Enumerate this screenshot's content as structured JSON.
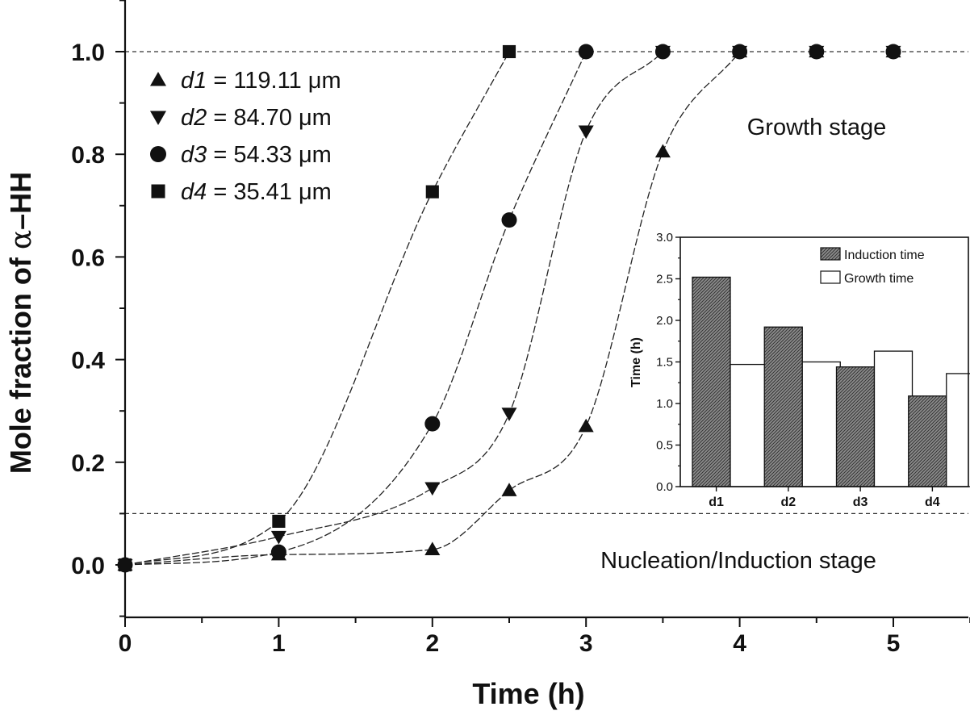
{
  "chart_data": [
    {
      "type": "scatter",
      "xlabel": "Time (h)",
      "ylabel_prefix": "Mole fraction of ",
      "ylabel_symbol": "α",
      "ylabel_suffix": "–HH",
      "xlim": [
        0,
        5.5
      ],
      "ylim": [
        -0.1,
        1.1
      ],
      "x_ticks": [
        "0",
        "1",
        "2",
        "3",
        "4",
        "5"
      ],
      "y_ticks": [
        "0.0",
        "0.2",
        "0.4",
        "0.6",
        "0.8",
        "1.0"
      ],
      "reference_lines": [
        1.0,
        0.1
      ],
      "annotations": [
        "Growth stage",
        "Nucleation/Induction stage"
      ],
      "series": [
        {
          "name": "d1",
          "value_text": "119.11",
          "unit": "μm",
          "marker": "triangle-up",
          "points": [
            [
              0,
              0.0
            ],
            [
              1,
              0.02
            ],
            [
              2,
              0.03
            ],
            [
              2.5,
              0.145
            ],
            [
              3,
              0.27
            ],
            [
              3.5,
              0.805
            ],
            [
              4,
              1.0
            ],
            [
              4.5,
              1.0
            ],
            [
              5,
              1.0
            ]
          ]
        },
        {
          "name": "d2",
          "value_text": "84.70",
          "unit": "μm",
          "marker": "triangle-down",
          "points": [
            [
              0,
              0.0
            ],
            [
              1,
              0.055
            ],
            [
              2,
              0.15
            ],
            [
              2.5,
              0.295
            ],
            [
              3,
              0.845
            ],
            [
              3.5,
              1.0
            ],
            [
              4,
              1.0
            ],
            [
              4.5,
              1.0
            ],
            [
              5,
              1.0
            ]
          ]
        },
        {
          "name": "d3",
          "value_text": "54.33",
          "unit": "μm",
          "marker": "circle",
          "points": [
            [
              0,
              0.0
            ],
            [
              1,
              0.025
            ],
            [
              2,
              0.275
            ],
            [
              2.5,
              0.672
            ],
            [
              3,
              1.0
            ],
            [
              3.5,
              1.0
            ],
            [
              4,
              1.0
            ],
            [
              4.5,
              1.0
            ],
            [
              5,
              1.0
            ]
          ]
        },
        {
          "name": "d4",
          "value_text": "35.41",
          "unit": "μm",
          "marker": "square",
          "points": [
            [
              0,
              0.0
            ],
            [
              1,
              0.085
            ],
            [
              2,
              0.727
            ],
            [
              2.5,
              1.0
            ]
          ]
        }
      ]
    },
    {
      "type": "bar",
      "ylabel": "Time (h)",
      "categories": [
        "d1",
        "d2",
        "d3",
        "d4"
      ],
      "ylim": [
        0,
        3.0
      ],
      "y_ticks": [
        "0.0",
        "0.5",
        "1.0",
        "1.5",
        "2.0",
        "2.5",
        "3.0"
      ],
      "series": [
        {
          "name": "Induction time",
          "values": [
            2.52,
            1.92,
            1.44,
            1.09
          ],
          "fill": "hatched"
        },
        {
          "name": "Growth time",
          "values": [
            1.47,
            1.5,
            1.63,
            1.36
          ],
          "fill": "white"
        }
      ]
    }
  ]
}
